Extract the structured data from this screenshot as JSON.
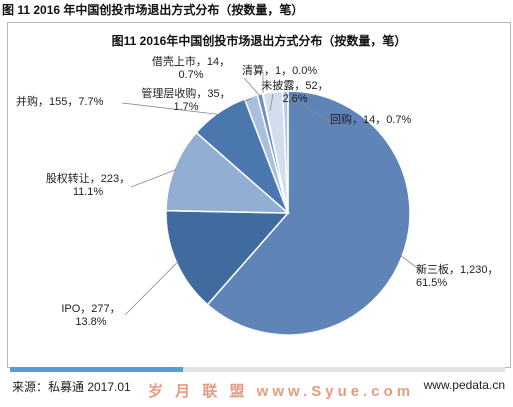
{
  "figure_title": "图 11 2016 年中国创投市场退出方式分布（按数量，笔）",
  "chart_data": {
    "type": "pie",
    "title": "图11 2016年中国创投市场退出方式分布（按数量，笔）",
    "slices": [
      {
        "name": "新三板",
        "value_text": "1,230",
        "value": 1230,
        "pct": "61.5%",
        "color": "#5f84b8"
      },
      {
        "name": "IPO",
        "value_text": "277",
        "value": 277,
        "pct": "13.8%",
        "color": "#3f6b9f"
      },
      {
        "name": "股权转让",
        "value_text": "223",
        "value": 223,
        "pct": "11.1%",
        "color": "#93aed3"
      },
      {
        "name": "并购",
        "value_text": "155",
        "value": 155,
        "pct": "7.7%",
        "color": "#4a77ae"
      },
      {
        "name": "管理层收购",
        "value_text": "35",
        "value": 35,
        "pct": "1.7%",
        "color": "#aabfdd"
      },
      {
        "name": "借壳上市",
        "value_text": "14",
        "value": 14,
        "pct": "0.7%",
        "color": "#6d90c1"
      },
      {
        "name": "清算",
        "value_text": "1",
        "value": 1,
        "pct": "0.0%",
        "color": "#c1d0e6"
      },
      {
        "name": "未披露",
        "value_text": "52",
        "value": 52,
        "pct": "2.6%",
        "color": "#d2ddee"
      },
      {
        "name": "回购",
        "value_text": "14",
        "value": 14,
        "pct": "0.7%",
        "color": "#b6c8e3"
      }
    ]
  },
  "progress": {
    "fraction": 0.35,
    "color": "#4f9fd8"
  },
  "footer": {
    "source": "来源：私募通 2017.01",
    "watermark": "岁 月 联 盟   www.Syue.com",
    "site": "www.pedata.cn"
  }
}
